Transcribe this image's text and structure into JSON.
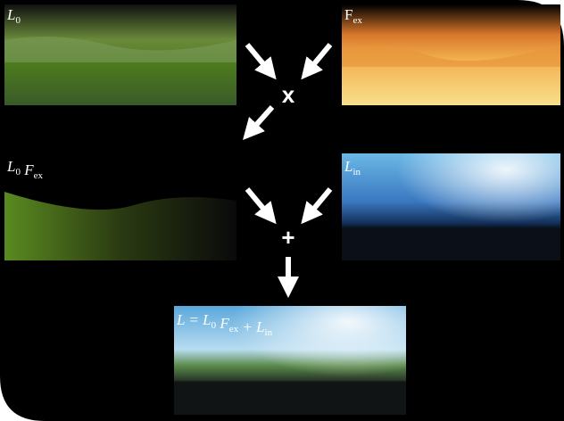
{
  "panels": [
    {
      "label": [
        {
          "text": "L",
          "sub": "0"
        }
      ]
    },
    {
      "label": [
        {
          "text": "F",
          "sub": "ex"
        }
      ]
    },
    {
      "label": [
        {
          "text": "L",
          "sub": "0"
        },
        {
          "text": " F",
          "sub": "ex"
        }
      ]
    },
    {
      "label": [
        {
          "text": "L",
          "sub": "in"
        }
      ]
    },
    {
      "label": [
        {
          "text": "L = L",
          "sub": "0"
        },
        {
          "text": " F",
          "sub": "ex"
        },
        {
          "text": " + L",
          "sub": "in"
        }
      ]
    }
  ],
  "operators": [
    "x",
    "+"
  ]
}
